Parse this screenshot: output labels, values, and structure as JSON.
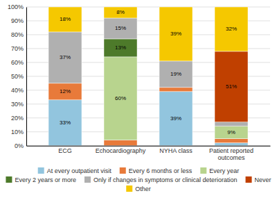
{
  "chart_data": {
    "type": "bar",
    "stacked": true,
    "data_labels": true,
    "grid": true,
    "legend": "bottom",
    "categories": [
      "ECG",
      "Echocardiography",
      "NYHA class",
      "Patient reported outcomes"
    ],
    "series": [
      {
        "name": "At every outpatient visit",
        "color": "#92c5de",
        "values": [
          33,
          0,
          39,
          2
        ],
        "value_labels": [
          "33%",
          null,
          "39%",
          null
        ]
      },
      {
        "name": "Every 6 months or less",
        "color": "#e87a3a",
        "values": [
          12,
          4,
          3,
          3
        ],
        "value_labels": [
          "12%",
          null,
          null,
          null
        ]
      },
      {
        "name": "Every year",
        "color": "#b8d48e",
        "values": [
          0,
          60,
          0,
          9
        ],
        "value_labels": [
          null,
          "60%",
          null,
          "9%"
        ]
      },
      {
        "name": "Every 2 years or more",
        "color": "#4d7a2a",
        "values": [
          0,
          13,
          0,
          0
        ],
        "value_labels": [
          null,
          "13%",
          null,
          null
        ]
      },
      {
        "name": "Only if changes in symptoms or clinical deterioration",
        "color": "#b0b0b0",
        "values": [
          37,
          15,
          19,
          3
        ],
        "value_labels": [
          "37%",
          "15%",
          "19%",
          null
        ]
      },
      {
        "name": "Never",
        "color": "#c04000",
        "values": [
          0,
          0,
          0,
          51
        ],
        "value_labels": [
          null,
          null,
          null,
          "51%"
        ]
      },
      {
        "name": "Other",
        "color": "#f5c800",
        "values": [
          18,
          8,
          39,
          32
        ],
        "value_labels": [
          "18%",
          "8%",
          "39%",
          "32%"
        ]
      }
    ],
    "ylim": [
      0,
      100
    ],
    "yticks": [
      {
        "value": 0,
        "label": "0%"
      },
      {
        "value": 10,
        "label": "10%"
      },
      {
        "value": 20,
        "label": "20%"
      },
      {
        "value": 30,
        "label": "30%"
      },
      {
        "value": 40,
        "label": "40%"
      },
      {
        "value": 50,
        "label": "50%"
      },
      {
        "value": 60,
        "label": "60%"
      },
      {
        "value": 70,
        "label": "70%"
      },
      {
        "value": 80,
        "label": "80%"
      },
      {
        "value": 90,
        "label": "90%"
      },
      {
        "value": 100,
        "label": "100%"
      }
    ]
  }
}
